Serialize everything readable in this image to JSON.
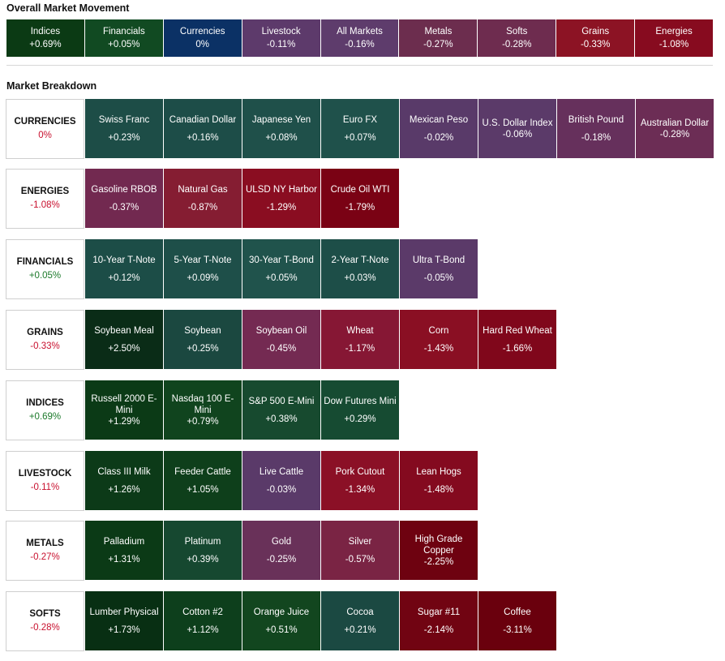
{
  "overall": {
    "title": "Overall Market Movement",
    "tiles": [
      {
        "label": "Indices",
        "change": "+0.69%",
        "color": "#0b3a14"
      },
      {
        "label": "Financials",
        "change": "+0.05%",
        "color": "#114a22"
      },
      {
        "label": "Currencies",
        "change": "0%",
        "color": "#0b3165"
      },
      {
        "label": "Livestock",
        "change": "-0.11%",
        "color": "#5d3a6b"
      },
      {
        "label": "All Markets",
        "change": "-0.16%",
        "color": "#5e3c6c"
      },
      {
        "label": "Metals",
        "change": "-0.27%",
        "color": "#6c2d4e"
      },
      {
        "label": "Softs",
        "change": "-0.28%",
        "color": "#6e2c4f"
      },
      {
        "label": "Grains",
        "change": "-0.33%",
        "color": "#8c1324"
      },
      {
        "label": "Energies",
        "change": "-1.08%",
        "color": "#870b1f"
      }
    ]
  },
  "breakdown": {
    "title": "Market Breakdown",
    "positive_color": "#1c7a2b",
    "negative_color": "#c8102e",
    "sectors": [
      {
        "name": "CURRENCIES",
        "change": "0%",
        "tone": "negative",
        "items": [
          {
            "name": "Swiss Franc",
            "change": "+0.23%",
            "color": "#1d4d47"
          },
          {
            "name": "Canadian Dollar",
            "change": "+0.16%",
            "color": "#1d4d48"
          },
          {
            "name": "Japanese Yen",
            "change": "+0.08%",
            "color": "#1f504a"
          },
          {
            "name": "Euro FX",
            "change": "+0.07%",
            "color": "#1f514b"
          },
          {
            "name": "Mexican Peso",
            "change": "-0.02%",
            "color": "#593a69"
          },
          {
            "name": "U.S. Dollar Index",
            "change": "-0.06%",
            "color": "#5b3a69"
          },
          {
            "name": "British Pound",
            "change": "-0.18%",
            "color": "#66305c"
          },
          {
            "name": "Australian Dollar",
            "change": "-0.28%",
            "color": "#6c2d55"
          }
        ]
      },
      {
        "name": "ENERGIES",
        "change": "-1.08%",
        "tone": "negative",
        "items": [
          {
            "name": "Gasoline RBOB",
            "change": "-0.37%",
            "color": "#722950"
          },
          {
            "name": "Natural Gas",
            "change": "-0.87%",
            "color": "#851d32"
          },
          {
            "name": "ULSD NY Harbor",
            "change": "-1.29%",
            "color": "#8a0d21"
          },
          {
            "name": "Crude Oil WTI",
            "change": "-1.79%",
            "color": "#7a0214"
          }
        ]
      },
      {
        "name": "FINANCIALS",
        "change": "+0.05%",
        "tone": "positive",
        "items": [
          {
            "name": "10-Year T-Note",
            "change": "+0.12%",
            "color": "#1c4d47"
          },
          {
            "name": "5-Year T-Note",
            "change": "+0.09%",
            "color": "#1e4f49"
          },
          {
            "name": "30-Year T-Bond",
            "change": "+0.05%",
            "color": "#20534c"
          },
          {
            "name": "2-Year T-Note",
            "change": "+0.03%",
            "color": "#1d4e48"
          },
          {
            "name": "Ultra T-Bond",
            "change": "-0.05%",
            "color": "#5b3a69"
          }
        ]
      },
      {
        "name": "GRAINS",
        "change": "-0.33%",
        "tone": "negative",
        "items": [
          {
            "name": "Soybean Meal",
            "change": "+2.50%",
            "color": "#0a2c17"
          },
          {
            "name": "Soybean",
            "change": "+0.25%",
            "color": "#1b4840"
          },
          {
            "name": "Soybean Oil",
            "change": "-0.45%",
            "color": "#742a52"
          },
          {
            "name": "Wheat",
            "change": "-1.17%",
            "color": "#861734"
          },
          {
            "name": "Corn",
            "change": "-1.43%",
            "color": "#8a0f23"
          },
          {
            "name": "Hard Red Wheat",
            "change": "-1.66%",
            "color": "#80071b"
          }
        ]
      },
      {
        "name": "INDICES",
        "change": "+0.69%",
        "tone": "positive",
        "items": [
          {
            "name": "Russell 2000 E-Mini",
            "change": "+1.29%",
            "color": "#0b3a16"
          },
          {
            "name": "Nasdaq 100 E-Mini",
            "change": "+0.79%",
            "color": "#10441e"
          },
          {
            "name": "S&P 500 E-Mini",
            "change": "+0.38%",
            "color": "#174a2f"
          },
          {
            "name": "Dow Futures Mini",
            "change": "+0.29%",
            "color": "#164b32"
          }
        ]
      },
      {
        "name": "LIVESTOCK",
        "change": "-0.11%",
        "tone": "negative",
        "items": [
          {
            "name": "Class III Milk",
            "change": "+1.26%",
            "color": "#0c3a18"
          },
          {
            "name": "Feeder Cattle",
            "change": "+1.05%",
            "color": "#0e3f1b"
          },
          {
            "name": "Live Cattle",
            "change": "-0.03%",
            "color": "#5a3a69"
          },
          {
            "name": "Pork Cutout",
            "change": "-1.34%",
            "color": "#8b1026"
          },
          {
            "name": "Lean Hogs",
            "change": "-1.48%",
            "color": "#840a1f"
          }
        ]
      },
      {
        "name": "METALS",
        "change": "-0.27%",
        "tone": "negative",
        "items": [
          {
            "name": "Palladium",
            "change": "+1.31%",
            "color": "#0b3a16"
          },
          {
            "name": "Platinum",
            "change": "+0.39%",
            "color": "#164830"
          },
          {
            "name": "Gold",
            "change": "-0.25%",
            "color": "#693159"
          },
          {
            "name": "Silver",
            "change": "-0.57%",
            "color": "#7a2444"
          },
          {
            "name": "High Grade Copper",
            "change": "-2.25%",
            "color": "#6e0210"
          }
        ]
      },
      {
        "name": "SOFTS",
        "change": "-0.28%",
        "tone": "negative",
        "items": [
          {
            "name": "Lumber Physical",
            "change": "+1.73%",
            "color": "#082f13"
          },
          {
            "name": "Cotton #2",
            "change": "+1.12%",
            "color": "#0d3f1c"
          },
          {
            "name": "Orange Juice",
            "change": "+0.51%",
            "color": "#12461f"
          },
          {
            "name": "Cocoa",
            "change": "+0.21%",
            "color": "#1b4942"
          },
          {
            "name": "Sugar #11",
            "change": "-2.14%",
            "color": "#710412"
          },
          {
            "name": "Coffee",
            "change": "-3.11%",
            "color": "#6a000d"
          }
        ]
      }
    ]
  }
}
